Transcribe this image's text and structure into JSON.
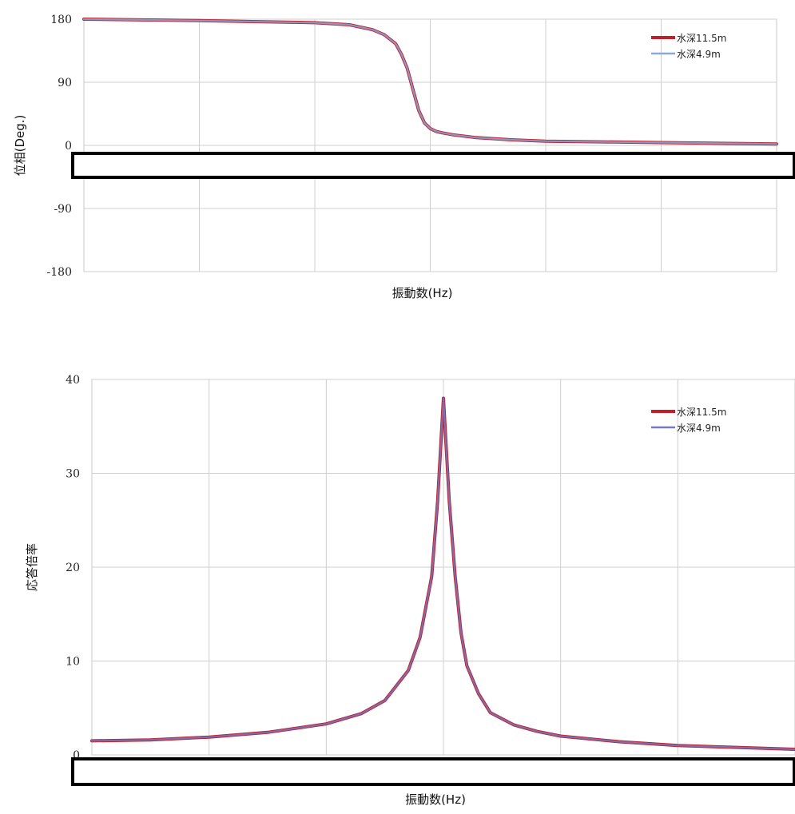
{
  "chart_data": [
    {
      "type": "line",
      "title": "",
      "xlabel": "振動数(Hz)",
      "ylabel": "位相(Deg.)",
      "ylim": [
        -180,
        180
      ],
      "yticks": [
        "180",
        "90",
        "0",
        "-90",
        "-180"
      ],
      "xlim": [
        0,
        6
      ],
      "grid": true,
      "legend_position": "top-right",
      "series": [
        {
          "name": "水深11.5m",
          "color": "#c0202a",
          "x": [
            0,
            0.5,
            1.0,
            1.5,
            2.0,
            2.3,
            2.5,
            2.6,
            2.7,
            2.75,
            2.8,
            2.85,
            2.9,
            2.95,
            3.0,
            3.05,
            3.1,
            3.2,
            3.4,
            3.7,
            4.0,
            4.5,
            5.0,
            5.5,
            6.0
          ],
          "y": [
            180,
            179,
            178,
            176.5,
            175,
            172,
            165,
            158,
            145,
            130,
            110,
            80,
            50,
            32,
            24,
            20,
            18,
            15,
            11,
            8,
            6,
            5,
            4,
            3,
            2
          ]
        },
        {
          "name": "水深4.9m",
          "color": "#8aa8d8",
          "x": [
            0,
            0.5,
            1.0,
            1.5,
            2.0,
            2.3,
            2.5,
            2.6,
            2.7,
            2.75,
            2.8,
            2.85,
            2.9,
            2.95,
            3.0,
            3.05,
            3.1,
            3.2,
            3.4,
            3.7,
            4.0,
            4.5,
            5.0,
            5.5,
            6.0
          ],
          "y": [
            180,
            179,
            178,
            176.5,
            175,
            172,
            165,
            158,
            145,
            130,
            110,
            80,
            50,
            32,
            24,
            20,
            18,
            15,
            11,
            8,
            6,
            5,
            4,
            3,
            2
          ]
        }
      ]
    },
    {
      "type": "line",
      "title": "",
      "xlabel": "振動数(Hz)",
      "ylabel": "応答倍率",
      "ylim": [
        0,
        40
      ],
      "yticks": [
        "40",
        "30",
        "20",
        "10",
        "0"
      ],
      "xlim": [
        0,
        6
      ],
      "grid": true,
      "legend_position": "top-right",
      "series": [
        {
          "name": "水深11.5m",
          "color": "#c0202a",
          "x": [
            0,
            0.5,
            1.0,
            1.5,
            2.0,
            2.3,
            2.5,
            2.7,
            2.8,
            2.9,
            2.95,
            3.0,
            3.05,
            3.1,
            3.15,
            3.2,
            3.3,
            3.4,
            3.6,
            3.8,
            4.0,
            4.5,
            5.0,
            5.5,
            6.0
          ],
          "y": [
            1.5,
            1.6,
            1.9,
            2.4,
            3.3,
            4.4,
            5.8,
            9,
            12.5,
            19,
            27,
            38,
            27,
            19,
            13,
            9.5,
            6.5,
            4.5,
            3.2,
            2.5,
            2.0,
            1.4,
            1.0,
            0.8,
            0.6
          ]
        },
        {
          "name": "水深4.9m",
          "color": "#7a78c0",
          "x": [
            0,
            0.5,
            1.0,
            1.5,
            2.0,
            2.3,
            2.5,
            2.7,
            2.8,
            2.9,
            2.95,
            3.0,
            3.05,
            3.1,
            3.15,
            3.2,
            3.3,
            3.4,
            3.6,
            3.8,
            4.0,
            4.5,
            5.0,
            5.5,
            6.0
          ],
          "y": [
            1.5,
            1.6,
            1.9,
            2.4,
            3.3,
            4.4,
            5.8,
            9,
            12.5,
            19,
            27,
            38,
            27,
            19,
            13,
            9.5,
            6.5,
            4.5,
            3.2,
            2.5,
            2.0,
            1.4,
            1.0,
            0.8,
            0.6
          ]
        }
      ]
    }
  ]
}
